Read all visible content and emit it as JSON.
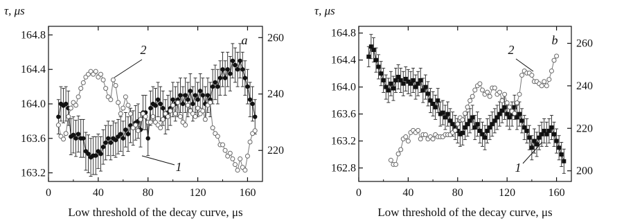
{
  "chart_data": [
    {
      "type": "scatter",
      "panel_label": "a",
      "xlabel": "Low threshold of the decay curve, μs",
      "ylabel_left": "τ, μs",
      "x_ticks": [
        0,
        40,
        80,
        120,
        160
      ],
      "xlim": [
        0,
        172
      ],
      "ylim_left": [
        163.1,
        164.9
      ],
      "yticks_left": [
        163.2,
        163.6,
        164.0,
        164.4,
        164.8
      ],
      "ylim_right": [
        209,
        264
      ],
      "yticks_right": [
        220,
        240,
        260
      ],
      "series": [
        {
          "name": "1",
          "axis": "left",
          "marker": "filled-circle",
          "error_bars": true,
          "x": [
            8,
            10,
            12,
            14,
            16,
            18,
            20,
            22,
            24,
            26,
            28,
            30,
            32,
            34,
            36,
            38,
            40,
            42,
            44,
            46,
            48,
            50,
            52,
            54,
            56,
            58,
            60,
            62,
            64,
            66,
            68,
            70,
            72,
            74,
            76,
            78,
            80,
            82,
            84,
            86,
            88,
            90,
            92,
            94,
            96,
            98,
            100,
            102,
            104,
            106,
            108,
            110,
            112,
            114,
            116,
            118,
            120,
            122,
            124,
            126,
            128,
            130,
            132,
            134,
            136,
            138,
            140,
            142,
            144,
            146,
            148,
            150,
            152,
            154,
            156,
            158,
            160,
            162,
            164,
            166
          ],
          "y": [
            163.85,
            164.0,
            163.98,
            164.0,
            163.95,
            163.62,
            163.64,
            163.6,
            163.65,
            163.6,
            163.6,
            163.45,
            163.42,
            163.38,
            163.4,
            163.4,
            163.45,
            163.42,
            163.5,
            163.55,
            163.6,
            163.55,
            163.6,
            163.58,
            163.62,
            163.65,
            163.6,
            163.7,
            163.65,
            163.75,
            163.72,
            163.78,
            163.8,
            163.7,
            163.9,
            163.9,
            163.6,
            163.95,
            164.0,
            163.98,
            164.05,
            164.0,
            163.95,
            163.85,
            163.9,
            163.95,
            164.05,
            164.0,
            164.05,
            164.1,
            164.0,
            164.1,
            164.05,
            164.15,
            164.0,
            164.1,
            164.05,
            164.15,
            164.1,
            164.0,
            164.1,
            164.05,
            164.2,
            164.25,
            164.2,
            164.3,
            164.4,
            164.3,
            164.4,
            164.35,
            164.5,
            164.45,
            164.4,
            164.5,
            164.4,
            164.3,
            164.2,
            164.05,
            164.0,
            163.85
          ],
          "err": [
            0.2,
            0.2,
            0.2,
            0.2,
            0.2,
            0.21,
            0.21,
            0.21,
            0.21,
            0.22,
            0.22,
            0.22,
            0.22,
            0.22,
            0.22,
            0.22,
            0.2,
            0.2,
            0.2,
            0.2,
            0.2,
            0.2,
            0.2,
            0.2,
            0.2,
            0.2,
            0.2,
            0.2,
            0.2,
            0.2,
            0.2,
            0.2,
            0.2,
            0.2,
            0.2,
            0.2,
            0.2,
            0.2,
            0.2,
            0.2,
            0.2,
            0.2,
            0.2,
            0.2,
            0.2,
            0.2,
            0.2,
            0.2,
            0.2,
            0.2,
            0.2,
            0.2,
            0.2,
            0.2,
            0.2,
            0.2,
            0.2,
            0.2,
            0.2,
            0.2,
            0.2,
            0.2,
            0.2,
            0.2,
            0.2,
            0.2,
            0.2,
            0.2,
            0.2,
            0.2,
            0.2,
            0.2,
            0.2,
            0.2,
            0.2,
            0.2,
            0.2,
            0.2,
            0.2,
            0.2
          ]
        },
        {
          "name": "2",
          "axis": "right",
          "marker": "open-circle",
          "x": [
            8,
            10,
            12,
            14,
            16,
            18,
            20,
            22,
            24,
            26,
            28,
            30,
            32,
            34,
            36,
            38,
            40,
            42,
            44,
            46,
            48,
            50,
            52,
            54,
            56,
            58,
            60,
            62,
            64,
            66,
            68,
            70,
            72,
            74,
            76,
            78,
            80,
            82,
            84,
            86,
            88,
            90,
            92,
            94,
            96,
            98,
            100,
            102,
            104,
            106,
            108,
            110,
            112,
            114,
            116,
            118,
            120,
            122,
            124,
            126,
            128,
            130,
            132,
            134,
            136,
            138,
            140,
            142,
            144,
            146,
            148,
            150,
            152,
            154,
            156,
            158,
            160,
            162,
            164,
            166
          ],
          "y": [
            229,
            225,
            224,
            226,
            232,
            235,
            237,
            236,
            239,
            242,
            244,
            246,
            247,
            248,
            247,
            248,
            246,
            247,
            245,
            242,
            239,
            238,
            245,
            243,
            237,
            233,
            235,
            239,
            236,
            233,
            228,
            229,
            227,
            231,
            233,
            232,
            230,
            230,
            232,
            230,
            229,
            228,
            231,
            233,
            232,
            234,
            236,
            233,
            237,
            232,
            230,
            229,
            236,
            234,
            233,
            232,
            235,
            233,
            234,
            231,
            236,
            237,
            228,
            226,
            225,
            222,
            222,
            220,
            218,
            219,
            217,
            215,
            213,
            217,
            214,
            213,
            218,
            223,
            226,
            227
          ]
        }
      ],
      "curve_labels": [
        "1",
        "2"
      ]
    },
    {
      "type": "scatter",
      "panel_label": "b",
      "xlabel": "Low threshold of the decay curve, μs",
      "ylabel_left": "τ, μs",
      "x_ticks": [
        0,
        40,
        80,
        120,
        160
      ],
      "xlim": [
        0,
        172
      ],
      "ylim_left": [
        162.6,
        164.9
      ],
      "yticks_left": [
        162.8,
        163.2,
        163.6,
        164.0,
        164.4,
        164.8
      ],
      "ylim_right": [
        195,
        268
      ],
      "yticks_right": [
        200,
        220,
        240,
        260
      ],
      "series": [
        {
          "name": "1",
          "axis": "left",
          "marker": "filled-square",
          "error_bars": true,
          "x": [
            8,
            10,
            12,
            14,
            16,
            18,
            20,
            22,
            24,
            26,
            28,
            30,
            32,
            34,
            36,
            38,
            40,
            42,
            44,
            46,
            48,
            50,
            52,
            54,
            56,
            58,
            60,
            62,
            64,
            66,
            68,
            70,
            72,
            74,
            76,
            78,
            80,
            82,
            84,
            86,
            88,
            90,
            92,
            94,
            96,
            98,
            100,
            102,
            104,
            106,
            108,
            110,
            112,
            114,
            116,
            118,
            120,
            122,
            124,
            126,
            128,
            130,
            132,
            134,
            136,
            138,
            140,
            142,
            144,
            146,
            148,
            150,
            152,
            154,
            156,
            158,
            160,
            162,
            164,
            166
          ],
          "y": [
            164.45,
            164.6,
            164.55,
            164.4,
            164.3,
            164.2,
            164.1,
            164.0,
            163.95,
            164.05,
            163.98,
            164.1,
            164.15,
            164.1,
            164.05,
            164.12,
            164.08,
            164.05,
            164.1,
            164.0,
            164.05,
            164.1,
            163.95,
            164.0,
            163.9,
            163.8,
            163.75,
            163.7,
            163.8,
            163.6,
            163.62,
            163.55,
            163.6,
            163.5,
            163.45,
            163.4,
            163.35,
            163.3,
            163.32,
            163.4,
            163.45,
            163.5,
            163.55,
            163.4,
            163.45,
            163.35,
            163.3,
            163.25,
            163.35,
            163.4,
            163.45,
            163.5,
            163.55,
            163.6,
            163.65,
            163.7,
            163.6,
            163.55,
            163.6,
            163.7,
            163.55,
            163.6,
            163.5,
            163.4,
            163.35,
            163.25,
            163.1,
            163.2,
            163.15,
            163.25,
            163.3,
            163.35,
            163.3,
            163.35,
            163.4,
            163.3,
            163.2,
            163.1,
            163.0,
            162.9
          ],
          "err": [
            0.15,
            0.18,
            0.18,
            0.18,
            0.18,
            0.18,
            0.18,
            0.18,
            0.18,
            0.18,
            0.18,
            0.18,
            0.18,
            0.18,
            0.18,
            0.18,
            0.18,
            0.18,
            0.18,
            0.18,
            0.18,
            0.18,
            0.18,
            0.18,
            0.18,
            0.18,
            0.18,
            0.18,
            0.18,
            0.18,
            0.18,
            0.18,
            0.18,
            0.18,
            0.18,
            0.18,
            0.18,
            0.18,
            0.18,
            0.18,
            0.18,
            0.18,
            0.18,
            0.18,
            0.18,
            0.18,
            0.18,
            0.18,
            0.18,
            0.18,
            0.18,
            0.18,
            0.18,
            0.18,
            0.18,
            0.18,
            0.18,
            0.18,
            0.18,
            0.18,
            0.18,
            0.18,
            0.18,
            0.18,
            0.18,
            0.18,
            0.18,
            0.18,
            0.18,
            0.18,
            0.18,
            0.18,
            0.18,
            0.18,
            0.18,
            0.18,
            0.18,
            0.18,
            0.18,
            0.18
          ]
        },
        {
          "name": "2",
          "axis": "right",
          "marker": "open-circle",
          "x": [
            26,
            28,
            30,
            32,
            34,
            36,
            38,
            40,
            42,
            44,
            46,
            48,
            50,
            52,
            54,
            56,
            58,
            60,
            62,
            64,
            66,
            68,
            70,
            72,
            74,
            76,
            78,
            80,
            82,
            84,
            86,
            88,
            90,
            92,
            94,
            96,
            98,
            100,
            102,
            104,
            106,
            108,
            110,
            112,
            114,
            116,
            118,
            120,
            122,
            124,
            126,
            128,
            130,
            132,
            134,
            136,
            138,
            140,
            142,
            144,
            146,
            148,
            150,
            152,
            154,
            156,
            158,
            160
          ],
          "y": [
            205,
            203,
            203,
            208,
            210,
            215,
            216,
            214,
            218,
            219,
            218,
            219,
            215,
            217,
            217,
            215,
            216,
            215,
            217,
            216,
            216,
            216,
            217,
            217,
            217,
            218,
            219,
            222,
            225,
            224,
            227,
            230,
            233,
            235,
            238,
            240,
            241,
            238,
            236,
            237,
            235,
            239,
            239,
            236,
            237,
            233,
            236,
            232,
            230,
            228,
            227,
            232,
            236,
            245,
            247,
            246,
            246,
            245,
            242,
            242,
            241,
            240,
            242,
            240,
            243,
            247,
            252,
            254
          ]
        }
      ],
      "curve_labels": [
        "1",
        "2"
      ]
    }
  ]
}
